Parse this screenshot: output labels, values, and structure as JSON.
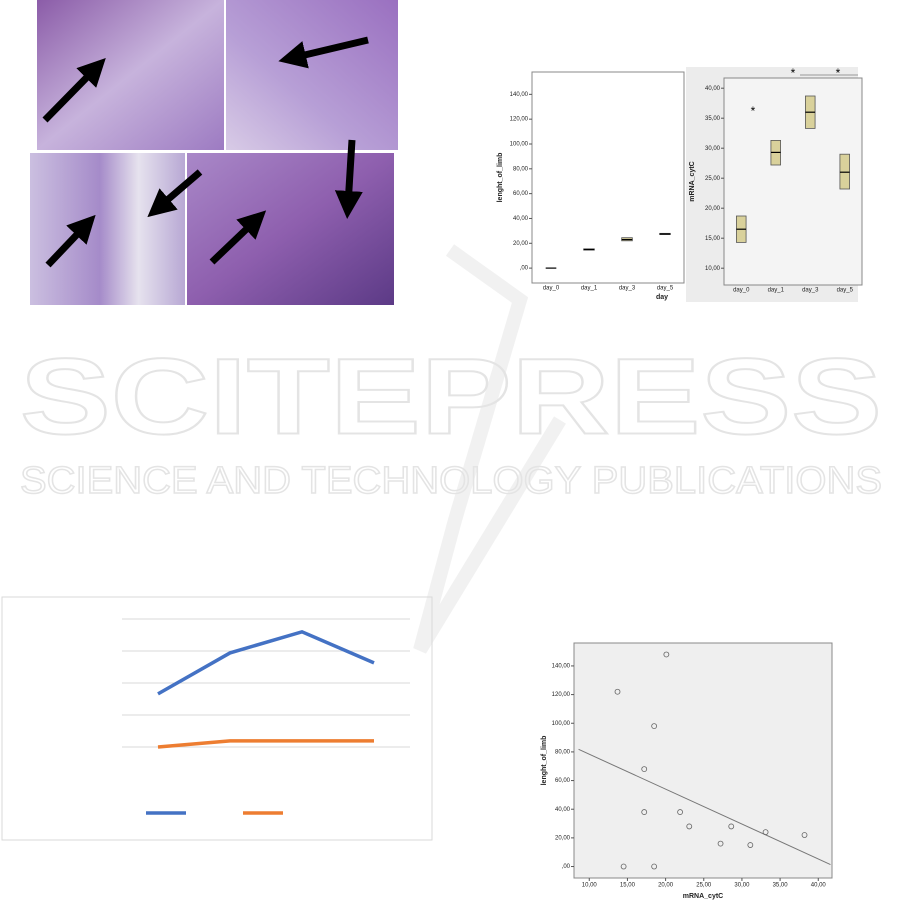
{
  "watermark": {
    "title": "SCITEPRESS",
    "subtitle": "SCIENCE AND TECHNOLOGY PUBLICATIONS"
  },
  "chart_data": [
    {
      "type": "box",
      "y_label": "lenght_of_limb",
      "x_label": "day",
      "categories": [
        "day_0",
        "day_1",
        "day_3",
        "day_5"
      ],
      "median": [
        0,
        15,
        23,
        27.5
      ],
      "q1": [
        0,
        14.5,
        22,
        27
      ],
      "q3": [
        0,
        15.5,
        24.5,
        28
      ],
      "color": "#d9d19b",
      "ylim": [
        -12,
        158
      ],
      "yticks": [
        {
          "value": 0,
          "label": ",00"
        },
        {
          "value": 20,
          "label": "20,00"
        },
        {
          "value": 40,
          "label": "40,00"
        },
        {
          "value": 60,
          "label": "60,00"
        },
        {
          "value": 80,
          "label": "80,00"
        },
        {
          "value": 100,
          "label": "100,00"
        },
        {
          "value": 120,
          "label": "120,00"
        },
        {
          "value": 140,
          "label": "140,00"
        }
      ]
    },
    {
      "type": "box",
      "y_label": "mRNA_cytC",
      "categories": [
        "day_0",
        "day_1",
        "day_3",
        "day_5"
      ],
      "median": [
        16.5,
        29.3,
        36,
        26
      ],
      "q1": [
        14.3,
        27.2,
        33.3,
        23.2
      ],
      "q3": [
        18.7,
        31.3,
        38.7,
        29
      ],
      "color": "#d9d19b",
      "ylim": [
        7.2,
        41.7
      ],
      "yticks": [
        {
          "value": 10,
          "label": "10,00"
        },
        {
          "value": 15,
          "label": "15,00"
        },
        {
          "value": 20,
          "label": "20,00"
        },
        {
          "value": 25,
          "label": "25,00"
        },
        {
          "value": 30,
          "label": "30,00"
        },
        {
          "value": 35,
          "label": "35,00"
        },
        {
          "value": 40,
          "label": "40,00"
        }
      ],
      "annotations": [
        "*",
        "*",
        "*"
      ]
    },
    {
      "type": "line",
      "categories": [
        null,
        null,
        null,
        null
      ],
      "series": [
        {
          "color": "#4472c4",
          "values": [
            2.66,
            3.94,
            4.6,
            3.63
          ]
        },
        {
          "color": "#ed7d31",
          "values": [
            1.0,
            1.19,
            1.19,
            1.19
          ]
        }
      ],
      "ylim": [
        0,
        5.5
      ],
      "grid_values": [
        1,
        2,
        3,
        4,
        5
      ]
    },
    {
      "type": "scatter",
      "x_label": "mRNA_cytC",
      "y_label": "lenght_of_limb",
      "x": [
        13.7,
        20.1,
        18.5,
        17.2,
        17.2,
        14.5,
        18.5,
        21.9,
        23.1,
        27.2,
        28.6,
        31.1,
        33.1,
        38.2
      ],
      "y": [
        122,
        148,
        98,
        68,
        38,
        0,
        0,
        38,
        28,
        16,
        28,
        15,
        24,
        22
      ],
      "trendline": {
        "x": [
          8.6,
          41.6
        ],
        "y": [
          81.8,
          1.4
        ]
      },
      "xlim": [
        8,
        41.8
      ],
      "ylim": [
        -8,
        156
      ],
      "xticks": [
        {
          "value": 10,
          "label": "10,00"
        },
        {
          "value": 15,
          "label": "15,00"
        },
        {
          "value": 20,
          "label": "20,00"
        },
        {
          "value": 25,
          "label": "25,00"
        },
        {
          "value": 30,
          "label": "30,00"
        },
        {
          "value": 35,
          "label": "35,00"
        },
        {
          "value": 40,
          "label": "40,00"
        }
      ],
      "yticks": [
        {
          "value": 0,
          "label": ",00"
        },
        {
          "value": 20,
          "label": "20,00"
        },
        {
          "value": 40,
          "label": "40,00"
        },
        {
          "value": 60,
          "label": "60,00"
        },
        {
          "value": 80,
          "label": "80,00"
        },
        {
          "value": 100,
          "label": "100,00"
        },
        {
          "value": 120,
          "label": "120,00"
        },
        {
          "value": 140,
          "label": "140,00"
        }
      ]
    }
  ]
}
